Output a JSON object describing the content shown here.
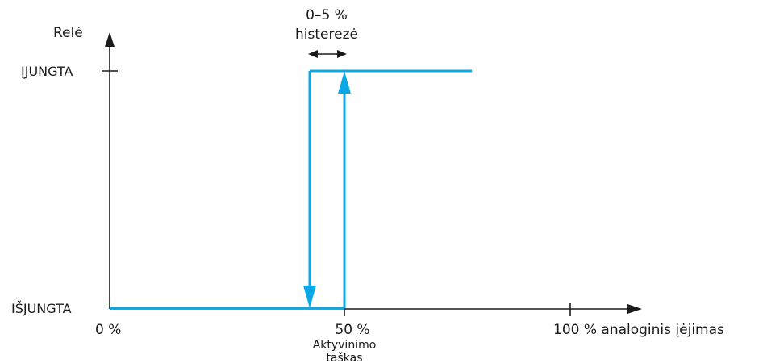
{
  "title": "",
  "y_axis": {
    "label": "Relė",
    "on_label": "ĮJUNGTA",
    "off_label": "IŠJUNGTA"
  },
  "x_axis": {
    "tick_0": "0 %",
    "tick_50": "50 %",
    "tick_100": "100 % analoginis įėjimas"
  },
  "annotations": {
    "hysteresis_value": "0–5 %",
    "hysteresis_label": "histerezė",
    "activation_line1": "Aktyvinimo",
    "activation_line2": "taškas"
  },
  "colors": {
    "signal": "#0aa8e6",
    "axis": "#1a1a1a"
  }
}
